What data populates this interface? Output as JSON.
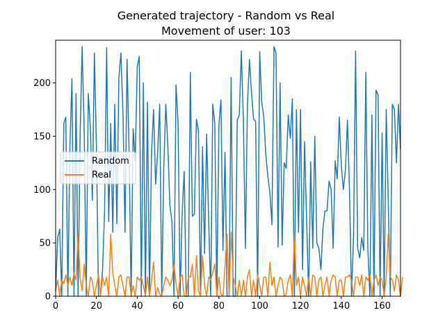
{
  "chart_data": {
    "type": "line",
    "title": "Generated trajectory - Random vs Real",
    "subtitle": "Movement of user: 103",
    "xlabel": "",
    "ylabel": "",
    "xlim": [
      0,
      169
    ],
    "ylim": [
      0,
      240
    ],
    "xticks": [
      0,
      20,
      40,
      60,
      80,
      100,
      120,
      140,
      160
    ],
    "yticks": [
      0,
      50,
      100,
      150,
      200
    ],
    "grid": false,
    "legend_placement": "center-left",
    "series": [
      {
        "name": "Random",
        "color": "#1f77b4",
        "values": [
          5,
          55,
          63,
          0,
          162,
          168,
          0,
          140,
          204,
          0,
          190,
          0,
          150,
          234,
          155,
          0,
          190,
          160,
          90,
          228,
          140,
          0,
          0,
          25,
          80,
          233,
          70,
          162,
          60,
          180,
          68,
          205,
          228,
          172,
          60,
          222,
          135,
          0,
          157,
          127,
          215,
          225,
          0,
          200,
          0,
          182,
          0,
          135,
          175,
          105,
          135,
          180,
          0,
          120,
          180,
          140,
          85,
          70,
          0,
          198,
          163,
          0,
          77,
          117,
          0,
          0,
          210,
          75,
          77,
          166,
          155,
          0,
          140,
          40,
          152,
          70,
          0,
          180,
          162,
          0,
          160,
          184,
          43,
          135,
          0,
          0,
          205,
          0,
          0,
          165,
          170,
          230,
          165,
          45,
          180,
          222,
          190,
          166,
          164,
          0,
          229,
          182,
          168,
          133,
          112,
          97,
          67,
          234,
          228,
          46,
          200,
          48,
          125,
          120,
          170,
          148,
          185,
          0,
          175,
          60,
          175,
          25,
          145,
          70,
          0,
          126,
          45,
          150,
          50,
          45,
          25,
          64,
          80,
          80,
          108,
          100,
          45,
          127,
          110,
          168,
          122,
          100,
          118,
          165,
          100,
          0,
          57,
          230,
          45,
          36,
          55,
          43,
          210,
          45,
          0,
          170,
          0,
          193,
          189,
          0,
          153,
          0,
          175,
          90,
          0,
          180,
          175,
          125,
          180,
          138
        ]
      },
      {
        "name": "Real",
        "color": "#ff7f0e",
        "values": [
          5,
          15,
          0,
          15,
          12,
          20,
          10,
          18,
          10,
          22,
          15,
          58,
          17,
          5,
          30,
          10,
          0,
          18,
          15,
          0,
          10,
          20,
          0,
          18,
          10,
          18,
          0,
          58,
          22,
          10,
          0,
          18,
          20,
          10,
          0,
          18,
          18,
          0,
          10,
          0,
          18,
          15,
          18,
          10,
          0,
          18,
          0,
          15,
          32,
          0,
          8,
          2,
          0,
          10,
          18,
          15,
          10,
          15,
          30,
          12,
          0,
          18,
          20,
          0,
          0,
          18,
          18,
          30,
          0,
          38,
          5,
          0,
          38,
          10,
          0,
          18,
          15,
          22,
          30,
          0,
          18,
          2,
          0,
          28,
          58,
          0,
          60,
          18,
          10,
          0,
          15,
          0,
          15,
          0,
          18,
          25,
          0,
          15,
          0,
          20,
          10,
          0,
          18,
          18,
          0,
          32,
          10,
          18,
          0,
          10,
          18,
          15,
          0,
          2,
          15,
          20,
          0,
          60,
          10,
          18,
          0,
          18,
          10,
          0,
          18,
          0,
          20,
          18,
          0,
          15,
          18,
          0,
          10,
          18,
          0,
          15,
          20,
          18,
          0,
          15,
          15,
          0,
          18,
          18,
          20,
          15,
          0,
          18,
          18,
          10,
          20,
          0,
          18,
          15,
          20,
          0,
          15,
          20,
          10,
          18,
          15,
          0,
          18,
          58,
          18,
          15,
          5,
          20,
          15,
          0,
          18
        ]
      }
    ]
  }
}
